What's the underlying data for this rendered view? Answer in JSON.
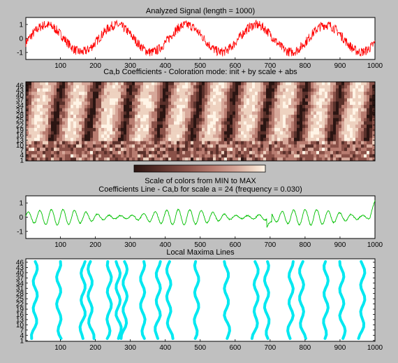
{
  "figure": {
    "background": "#c0c0c0"
  },
  "panel1": {
    "title": "Analyzed Signal (length = 1000)",
    "xticks": [
      "100",
      "200",
      "300",
      "400",
      "500",
      "600",
      "700",
      "800",
      "900",
      "1000"
    ],
    "yticks": [
      "1",
      "0",
      "-1"
    ],
    "color": "#ff0000"
  },
  "panel2": {
    "title": "Ca,b Coefficients - Coloration mode: init + by scale + abs",
    "yticks": [
      "46",
      "43",
      "40",
      "37",
      "34",
      "31",
      "28",
      "25",
      "22",
      "19",
      "16",
      "13",
      "10",
      "7",
      "4",
      "1"
    ],
    "colorbar_caption": "Scale of colors from MIN to MAX",
    "colormap": [
      "#2b1512",
      "#5a302a",
      "#8a5148",
      "#b87c70",
      "#d7a89a",
      "#eed2c0",
      "#fff4e6"
    ]
  },
  "panel3": {
    "title": "Coefficients Line - Ca,b for scale a = 24  (frequency =   0.030)",
    "xticks": [
      "100",
      "200",
      "300",
      "400",
      "500",
      "600",
      "700",
      "800",
      "900",
      "1000"
    ],
    "yticks": [
      "1",
      "0",
      "-1"
    ],
    "color": "#00c000"
  },
  "panel4": {
    "title": "Local Maxima Lines",
    "xticks": [
      "100",
      "200",
      "300",
      "400",
      "500",
      "600",
      "700",
      "800",
      "900",
      "1000"
    ],
    "yticks": [
      "46",
      "43",
      "40",
      "37",
      "34",
      "31",
      "28",
      "25",
      "22",
      "19",
      "16",
      "13",
      "10",
      "7",
      "4",
      "1"
    ],
    "color": "#00e8f0",
    "maxima_x_positions": [
      28,
      95,
      165,
      185,
      240,
      265,
      285,
      335,
      380,
      410,
      490,
      575,
      660,
      690,
      760,
      790,
      860,
      905,
      965
    ]
  },
  "chart_data": [
    {
      "type": "line",
      "title": "Analyzed Signal (length = 1000)",
      "description_of_series": "noisy sinusoid, period ~200, amplitude ~1",
      "x_range": [
        1,
        1000
      ],
      "ylim": [
        -1.5,
        1.5
      ],
      "series": [
        {
          "period": 200,
          "amplitude": 1.0,
          "noise": 0.35
        }
      ]
    },
    {
      "type": "heatmap",
      "title": "Ca,b Coefficients - Coloration mode: init + by scale + abs",
      "x_range": [
        1,
        1000
      ],
      "y_range": [
        1,
        48
      ]
    },
    {
      "type": "line",
      "title": "Coefficients Line - Ca,b for scale a = 24  (frequency =   0.030)",
      "x_range": [
        1,
        1000
      ],
      "ylim": [
        -1.5,
        1.5
      ]
    },
    {
      "type": "scatter",
      "title": "Local Maxima Lines",
      "x_range": [
        1,
        1000
      ],
      "y_range": [
        1,
        48
      ]
    }
  ]
}
